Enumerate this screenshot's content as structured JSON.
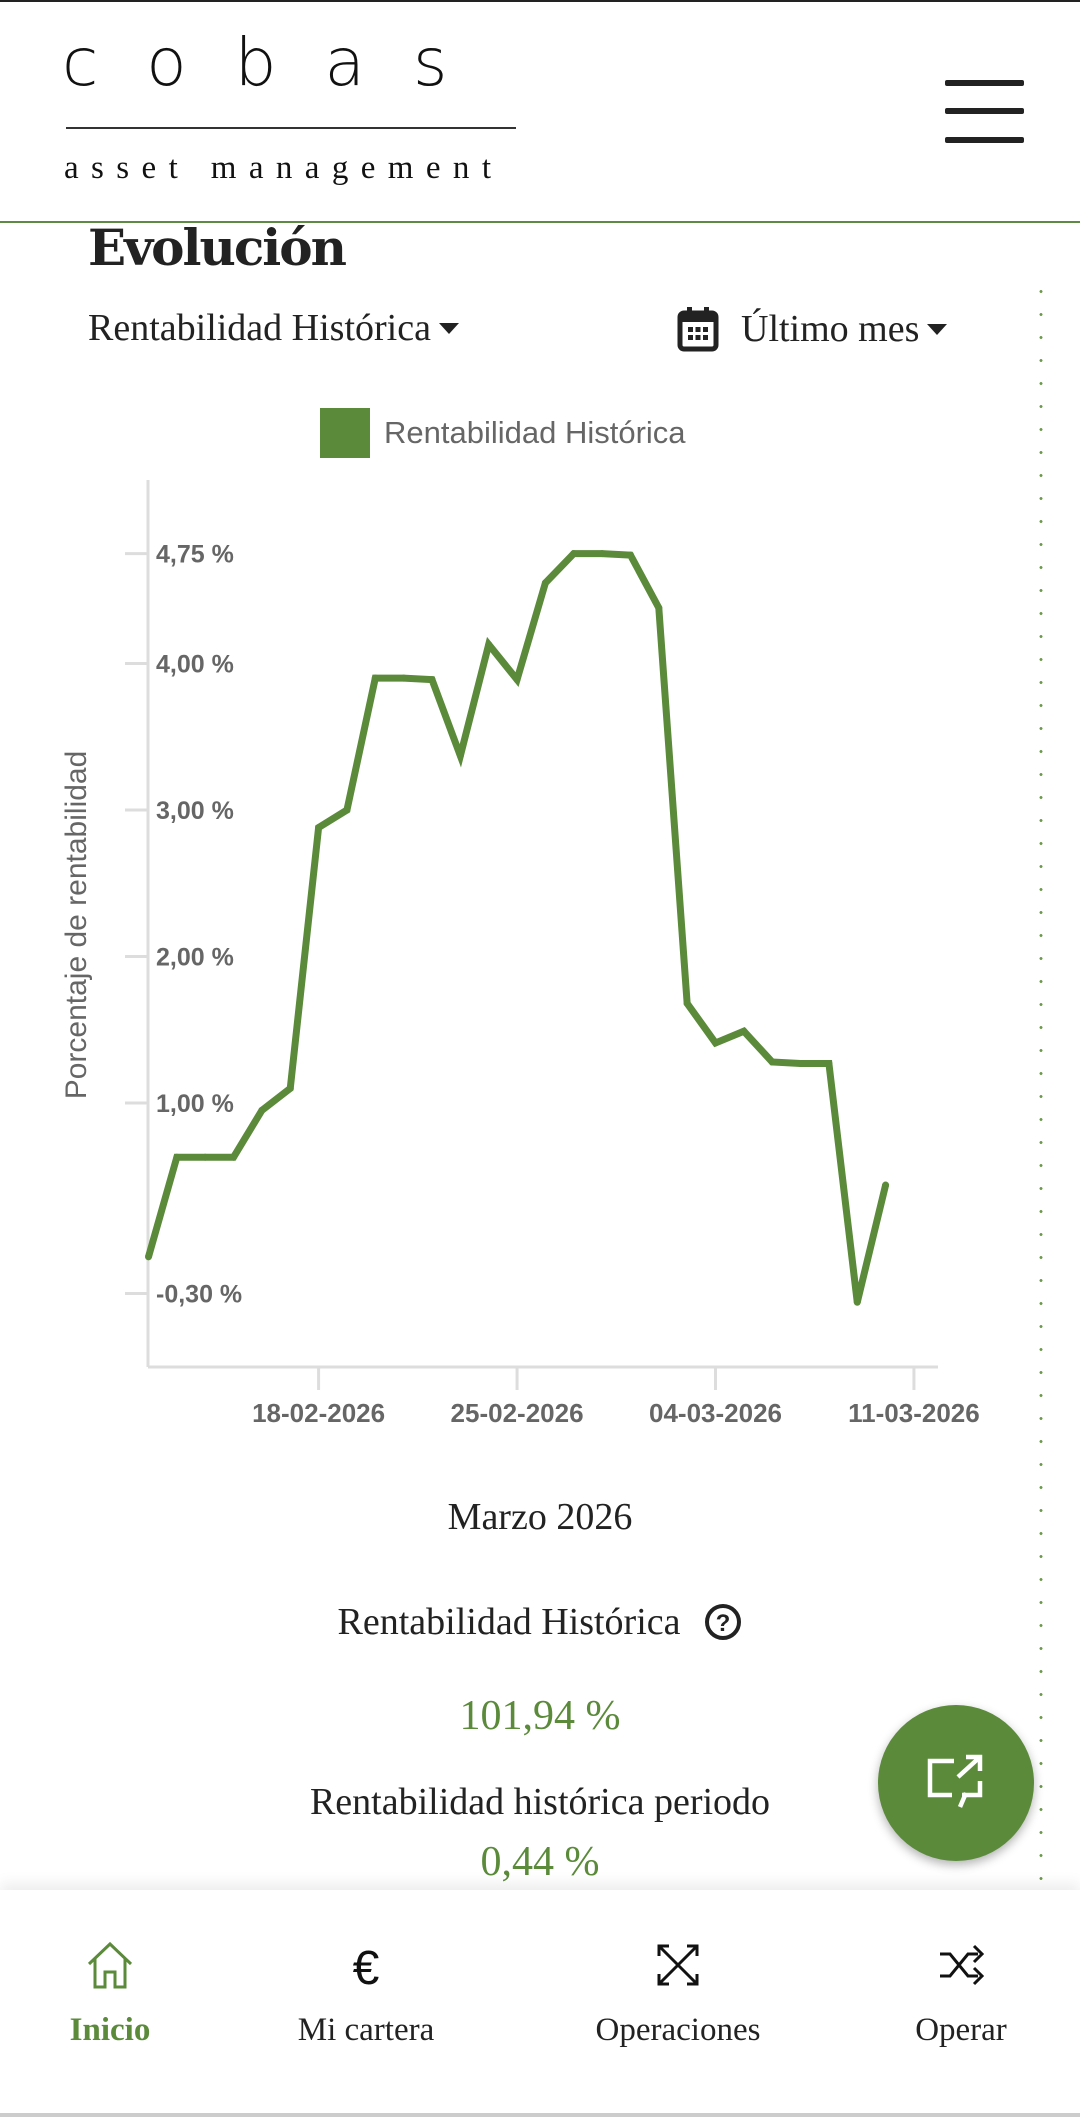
{
  "header": {
    "logo_main": "cobas",
    "logo_sub": "asset management",
    "menu_icon": "hamburger-icon"
  },
  "section": {
    "title": "Evolución",
    "metric_dropdown": "Rentabilidad Histórica",
    "period_dropdown": "Último mes"
  },
  "chart_data": {
    "type": "line",
    "legend": "Rentabilidad Histórica",
    "ylabel": "Porcentaje de rentabilidad",
    "xlabel": "",
    "yticks": [
      {
        "v": 4.75,
        "label": "4,75 %"
      },
      {
        "v": 4.0,
        "label": "4,00 %"
      },
      {
        "v": 3.0,
        "label": "3,00 %"
      },
      {
        "v": 2.0,
        "label": "2,00 %"
      },
      {
        "v": 1.0,
        "label": "1,00 %"
      },
      {
        "v": -0.3,
        "label": "-0,30 %"
      }
    ],
    "xticks": [
      {
        "i": 6,
        "label": "18-02-2026"
      },
      {
        "i": 13,
        "label": "25-02-2026"
      },
      {
        "i": 20,
        "label": "04-03-2026"
      },
      {
        "i": 27,
        "label": "11-03-2026"
      }
    ],
    "x": [
      "12-02",
      "13-02",
      "14-02",
      "15-02",
      "16-02",
      "17-02",
      "18-02",
      "19-02",
      "20-02",
      "21-02",
      "22-02",
      "23-02",
      "24-02",
      "25-02",
      "26-02",
      "27-02",
      "28-02",
      "01-03",
      "02-03",
      "03-03",
      "04-03",
      "05-03",
      "06-03",
      "07-03",
      "08-03",
      "09-03",
      "10-03"
    ],
    "values": [
      -0.05,
      0.63,
      0.63,
      0.63,
      0.95,
      1.1,
      2.88,
      3.0,
      3.9,
      3.9,
      3.89,
      3.37,
      4.13,
      3.89,
      4.55,
      4.75,
      4.75,
      4.74,
      4.38,
      1.68,
      1.41,
      1.49,
      1.28,
      1.27,
      1.27,
      -0.36,
      0.44
    ],
    "color": "#5a8a3a"
  },
  "summary": {
    "month": "Marzo 2026",
    "hist_label": "Rentabilidad Histórica",
    "hist_value": "101,94 %",
    "period_label": "Rentabilidad histórica periodo",
    "period_value": "0,44 %"
  },
  "nav": [
    {
      "label": "Inicio",
      "icon": "home-icon",
      "active": true
    },
    {
      "label": "Mi cartera",
      "icon": "euro-icon"
    },
    {
      "label": "Operaciones",
      "icon": "arrows-cross-icon"
    },
    {
      "label": "Operar",
      "icon": "shuffle-icon"
    }
  ],
  "colors": {
    "accent": "#5a8a3a",
    "text": "#222222"
  }
}
